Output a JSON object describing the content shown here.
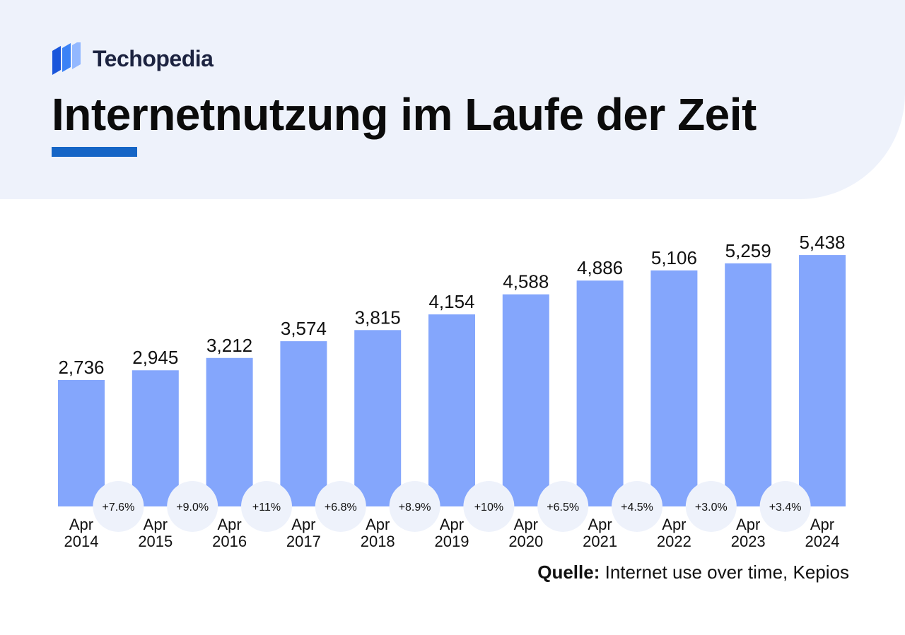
{
  "brand": {
    "name": "Techopedia",
    "logo_icon": "techopedia-logo-icon",
    "logo_colors": [
      "#1a56db",
      "#3b82f6",
      "#93b8ff"
    ]
  },
  "colors": {
    "bar": "#84a6fc",
    "accent": "#1565c6",
    "header_background": "#eef2fb",
    "growth_badge": "#eef2fb"
  },
  "title": "Internetnutzung im Laufe der Zeit",
  "source": {
    "label": "Quelle:",
    "text": "Internet use over time, Kepios"
  },
  "chart_data": {
    "type": "bar",
    "title": "Internetnutzung im Laufe der Zeit",
    "categories": [
      "Apr 2014",
      "Apr 2015",
      "Apr 2016",
      "Apr 2017",
      "Apr 2018",
      "Apr 2019",
      "Apr 2020",
      "Apr 2021",
      "Apr 2022",
      "Apr 2023",
      "Apr 2024"
    ],
    "category_lines": [
      [
        "Apr",
        "2014"
      ],
      [
        "Apr",
        "2015"
      ],
      [
        "Apr",
        "2016"
      ],
      [
        "Apr",
        "2017"
      ],
      [
        "Apr",
        "2018"
      ],
      [
        "Apr",
        "2019"
      ],
      [
        "Apr",
        "2020"
      ],
      [
        "Apr",
        "2021"
      ],
      [
        "Apr",
        "2022"
      ],
      [
        "Apr",
        "2023"
      ],
      [
        "Apr",
        "2024"
      ]
    ],
    "values": [
      2736,
      2945,
      3212,
      3574,
      3815,
      4154,
      4588,
      4886,
      5106,
      5259,
      5438
    ],
    "value_labels": [
      "2,736",
      "2,945",
      "3,212",
      "3,574",
      "3,815",
      "4,154",
      "4,588",
      "4,886",
      "5,106",
      "5,259",
      "5,438"
    ],
    "growth_labels": [
      "+7.6%",
      "+9.0%",
      "+11%",
      "+6.8%",
      "+8.9%",
      "+10%",
      "+6.5%",
      "+4.5%",
      "+3.0%",
      "+3.4%"
    ],
    "xlabel": "",
    "ylabel": "",
    "grid": false,
    "legend": "none"
  }
}
